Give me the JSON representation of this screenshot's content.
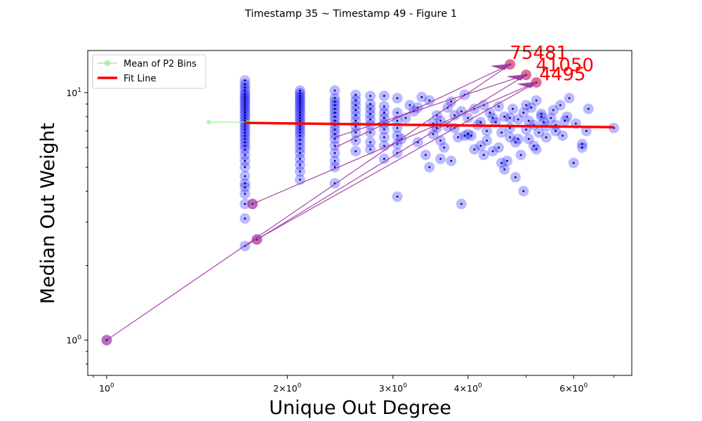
{
  "figure_title": "Timestamp 35 ~ Timestamp 49 - Figure 1",
  "chart_data": {
    "type": "scatter",
    "title": "Timestamp 35 ~ Timestamp 49 - Figure 1",
    "xlabel": "Unique Out Degree",
    "ylabel": "Median Out Weight",
    "xscale": "log",
    "yscale": "log",
    "xlim": [
      0.93,
      7.5
    ],
    "ylim": [
      0.72,
      14.8
    ],
    "x_ticks": [
      {
        "value": 1,
        "base": "10",
        "exp": "0"
      },
      {
        "value": 2,
        "mant": "2",
        "base": "10",
        "exp": "0"
      },
      {
        "value": 3,
        "mant": "3",
        "base": "10",
        "exp": "0"
      },
      {
        "value": 4,
        "mant": "4",
        "base": "10",
        "exp": "0"
      },
      {
        "value": 6,
        "mant": "6",
        "base": "10",
        "exp": "0"
      }
    ],
    "y_ticks": [
      {
        "value": 1,
        "base": "10",
        "exp": "0"
      },
      {
        "value": 10,
        "base": "10",
        "exp": "1"
      }
    ],
    "legend": {
      "position": "upper-left",
      "entries": [
        {
          "label": "Mean of P2 Bins",
          "color": "#90ee90",
          "style": "line-marker"
        },
        {
          "label": "Fit Line",
          "color": "#ff0000",
          "style": "line"
        }
      ]
    },
    "colors": {
      "points": "#0000ff",
      "highlight": "#9b30a0",
      "annotation_text": "#ff0000",
      "fit_line": "#ff0000",
      "p2_line": "#90ee90"
    },
    "point_columns": [
      {
        "x": 1.7,
        "ys": [
          2.4,
          3.1,
          3.55,
          3.9,
          4.15,
          4.3,
          4.6,
          5.0,
          5.3,
          5.6,
          5.9,
          6.1,
          6.3,
          6.5,
          6.7,
          6.9,
          7.1,
          7.3,
          7.5,
          7.7,
          7.9,
          8.1,
          8.3,
          8.5,
          8.7,
          8.9,
          9.1,
          9.3,
          9.5,
          9.7,
          9.9,
          10.2,
          10.5,
          10.8,
          11.2
        ]
      },
      {
        "x": 2.1,
        "ys": [
          4.45,
          4.8,
          5.1,
          5.4,
          5.7,
          5.95,
          6.2,
          6.45,
          6.7,
          6.9,
          7.1,
          7.3,
          7.5,
          7.7,
          7.9,
          8.1,
          8.3,
          8.5,
          8.7,
          8.9,
          9.1,
          9.3,
          9.5,
          9.7,
          9.95,
          10.2
        ]
      },
      {
        "x": 2.4,
        "ys": [
          4.3,
          5.0,
          5.3,
          5.7,
          6.1,
          6.5,
          6.8,
          7.1,
          7.4,
          7.7,
          8.0,
          8.3,
          8.6,
          8.9,
          9.2,
          9.5,
          10.2
        ]
      },
      {
        "x": 2.6,
        "ys": [
          5.8,
          6.4,
          6.9,
          7.3,
          7.7,
          8.1,
          8.5,
          8.9,
          9.3,
          9.8
        ]
      },
      {
        "x": 2.75,
        "ys": [
          5.9,
          6.3,
          6.9,
          7.4,
          7.8,
          8.2,
          8.6,
          9.0,
          9.7
        ]
      },
      {
        "x": 2.9,
        "ys": [
          5.4,
          6.1,
          6.6,
          7.1,
          7.5,
          7.9,
          8.3,
          8.8,
          9.7
        ]
      },
      {
        "x": 3.05,
        "ys": [
          3.8,
          5.7,
          6.2,
          6.7,
          7.2,
          7.7,
          8.3,
          9.5
        ]
      }
    ],
    "points": [
      [
        3.2,
        8.9
      ],
      [
        3.3,
        6.3
      ],
      [
        3.35,
        9.6
      ],
      [
        3.45,
        9.3
      ],
      [
        3.5,
        6.8
      ],
      [
        3.55,
        8.1
      ],
      [
        3.6,
        7.7
      ],
      [
        3.65,
        6.0
      ],
      [
        3.7,
        8.7
      ],
      [
        3.75,
        9.2
      ],
      [
        3.8,
        7.2
      ],
      [
        3.85,
        6.6
      ],
      [
        3.9,
        8.4
      ],
      [
        3.95,
        9.8
      ],
      [
        4.0,
        7.9
      ],
      [
        4.05,
        6.7
      ],
      [
        4.1,
        8.6
      ],
      [
        4.15,
        7.4
      ],
      [
        4.2,
        6.1
      ],
      [
        4.25,
        8.9
      ],
      [
        4.3,
        7.0
      ],
      [
        4.35,
        8.3
      ],
      [
        4.4,
        5.8
      ],
      [
        4.45,
        7.6
      ],
      [
        4.5,
        8.8
      ],
      [
        4.55,
        6.9
      ],
      [
        4.6,
        8.0
      ],
      [
        4.65,
        5.3
      ],
      [
        4.7,
        7.2
      ],
      [
        4.75,
        8.6
      ],
      [
        4.8,
        6.3
      ],
      [
        4.85,
        7.8
      ],
      [
        4.9,
        5.6
      ],
      [
        4.95,
        8.3
      ],
      [
        5.0,
        7.1
      ],
      [
        5.05,
        6.5
      ],
      [
        5.1,
        8.7
      ],
      [
        5.15,
        7.4
      ],
      [
        5.2,
        9.3
      ],
      [
        5.25,
        6.9
      ],
      [
        5.3,
        8.0
      ],
      [
        5.35,
        7.6
      ],
      [
        5.4,
        6.6
      ],
      [
        5.5,
        7.9
      ],
      [
        5.55,
        8.5
      ],
      [
        5.6,
        7.0
      ],
      [
        5.7,
        8.9
      ],
      [
        5.8,
        7.7
      ],
      [
        5.9,
        9.5
      ],
      [
        6.05,
        7.5
      ],
      [
        6.2,
        6.2
      ],
      [
        6.35,
        8.6
      ],
      [
        7.0,
        7.2
      ],
      [
        3.1,
        6.5
      ],
      [
        3.15,
        7.9
      ],
      [
        3.25,
        8.4
      ],
      [
        3.4,
        5.6
      ],
      [
        3.45,
        5.0
      ],
      [
        3.5,
        7.5
      ],
      [
        3.6,
        6.4
      ],
      [
        3.7,
        7.3
      ],
      [
        3.75,
        5.3
      ],
      [
        3.9,
        3.55
      ],
      [
        3.95,
        6.7
      ],
      [
        4.1,
        5.9
      ],
      [
        4.2,
        7.6
      ],
      [
        4.3,
        6.4
      ],
      [
        4.5,
        6.0
      ],
      [
        4.6,
        4.9
      ],
      [
        4.7,
        6.6
      ],
      [
        4.8,
        4.55
      ],
      [
        4.85,
        6.5
      ],
      [
        4.95,
        4.0
      ],
      [
        5.05,
        7.7
      ],
      [
        5.2,
        5.9
      ],
      [
        5.3,
        8.2
      ],
      [
        5.6,
        7.4
      ],
      [
        5.85,
        8.0
      ],
      [
        6.0,
        5.2
      ],
      [
        6.2,
        6.0
      ],
      [
        6.3,
        7.0
      ],
      [
        3.3,
        8.7
      ],
      [
        3.55,
        7.2
      ],
      [
        3.8,
        8.1
      ],
      [
        4.0,
        6.8
      ],
      [
        4.4,
        7.9
      ],
      [
        4.7,
        7.9
      ],
      [
        5.0,
        8.9
      ],
      [
        5.4,
        7.3
      ],
      [
        5.75,
        6.7
      ],
      [
        3.6,
        5.4
      ],
      [
        4.25,
        5.6
      ],
      [
        4.55,
        5.2
      ],
      [
        5.15,
        6.1
      ]
    ],
    "highlights": [
      {
        "x": 1.0,
        "y": 1.0
      },
      {
        "x": 1.78,
        "y": 2.55
      },
      {
        "x": 1.75,
        "y": 3.55
      },
      {
        "x": 4.7,
        "y": 13.0
      },
      {
        "x": 5.0,
        "y": 11.8
      },
      {
        "x": 5.2,
        "y": 11.0
      }
    ],
    "annotations": [
      {
        "label": "75481",
        "x": 4.7,
        "y": 13.0,
        "text_x": 5.25,
        "text_y": 13.7
      },
      {
        "label": "41050",
        "x": 5.0,
        "y": 11.8,
        "text_x": 5.8,
        "text_y": 12.2
      },
      {
        "label": "4495",
        "x": 5.2,
        "y": 11.0,
        "text_x": 5.75,
        "text_y": 11.2
      }
    ],
    "arrows": [
      {
        "from": [
          1.0,
          1.0
        ],
        "to": [
          4.7,
          13.0
        ]
      },
      {
        "from": [
          1.78,
          2.55
        ],
        "to": [
          5.0,
          11.8
        ]
      },
      {
        "from": [
          1.75,
          3.55
        ],
        "to": [
          5.2,
          11.0
        ]
      },
      {
        "from": [
          1.7,
          2.4
        ],
        "to": [
          5.2,
          11.0
        ]
      },
      {
        "from": [
          2.4,
          6.0
        ],
        "to": [
          4.7,
          13.0
        ]
      },
      {
        "from": [
          2.4,
          6.6
        ],
        "to": [
          5.0,
          11.8
        ]
      }
    ],
    "p2_bins": {
      "name": "Mean of P2 Bins",
      "x": [
        1.48,
        1.72
      ],
      "y": [
        7.6,
        7.6
      ]
    },
    "fit_line": {
      "name": "Fit Line",
      "x": [
        1.7,
        7.0
      ],
      "y": [
        7.55,
        7.25
      ]
    }
  }
}
